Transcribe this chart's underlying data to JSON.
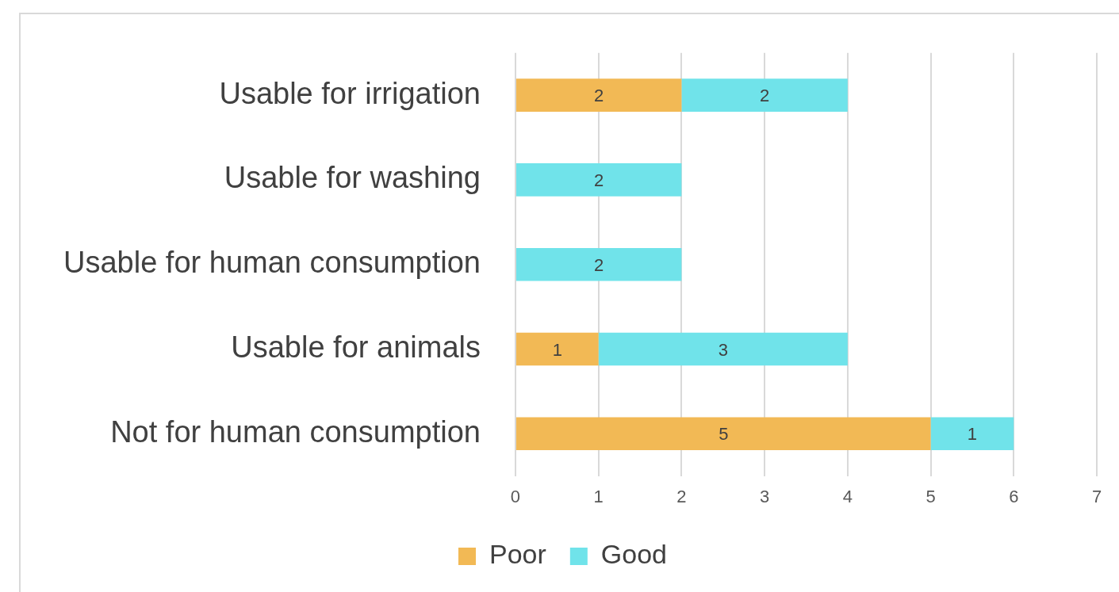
{
  "chart_data": {
    "type": "bar",
    "orientation": "horizontal",
    "stacked": true,
    "categories": [
      "Usable for irrigation",
      "Usable for washing",
      "Usable for human consumption",
      "Usable for animals",
      "Not for human consumption"
    ],
    "series": [
      {
        "name": "Poor",
        "color": "#f2b955",
        "values": [
          2,
          null,
          null,
          1,
          5
        ]
      },
      {
        "name": "Good",
        "color": "#70e3ea",
        "values": [
          2,
          2,
          2,
          3,
          1
        ]
      }
    ],
    "xlim": [
      0,
      7
    ],
    "xticks": [
      0,
      1,
      2,
      3,
      4,
      5,
      6,
      7
    ],
    "grid": "x",
    "legend": "bottom",
    "data_labels": true
  }
}
